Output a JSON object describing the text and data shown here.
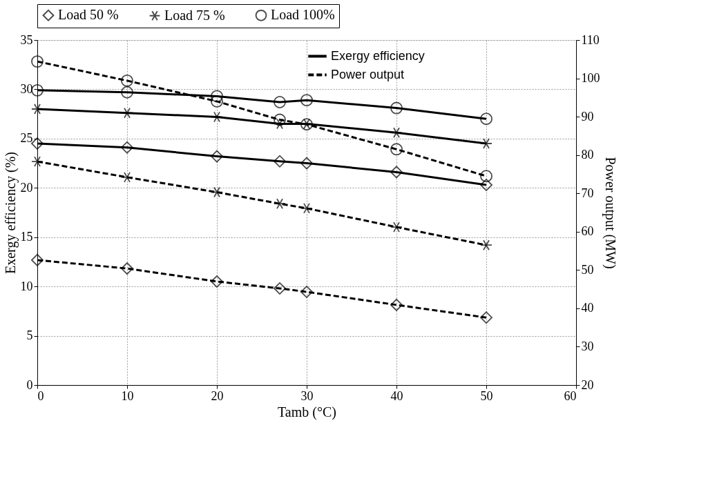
{
  "chart_data": {
    "type": "line",
    "xlabel": "Tamb (°C)",
    "ylabel": "Exergy efficiency (%)",
    "y2label": "Power output (MW)",
    "x": [
      0,
      10,
      20,
      27,
      30,
      40,
      50
    ],
    "series": [
      {
        "name": "Load 50 %",
        "color": "#000000",
        "marker": "diamond",
        "line_style": "solid",
        "axis": "y",
        "values": [
          24.5,
          24.1,
          23.2,
          22.7,
          22.5,
          21.6,
          20.3
        ]
      },
      {
        "name": "Load 75 %",
        "color": "#000000",
        "marker": "cross",
        "line_style": "solid",
        "axis": "y",
        "values": [
          28.0,
          27.6,
          27.2,
          26.5,
          26.5,
          25.6,
          24.5
        ]
      },
      {
        "name": "Load 100%",
        "color": "#000000",
        "marker": "circle",
        "line_style": "solid",
        "axis": "y",
        "values": [
          29.9,
          29.7,
          29.3,
          28.7,
          28.9,
          28.1,
          27.0
        ]
      },
      {
        "color": "#000000",
        "marker": "diamond",
        "line_style": "dashed",
        "axis": "y2",
        "values": [
          52.6,
          50.4,
          47.0,
          45.2,
          44.3,
          40.9,
          37.6
        ]
      },
      {
        "color": "#000000",
        "marker": "cross",
        "line_style": "dashed",
        "axis": "y2",
        "values": [
          78.3,
          74.2,
          70.3,
          67.3,
          66.1,
          61.2,
          56.5
        ]
      },
      {
        "color": "#000000",
        "marker": "circle",
        "line_style": "dashed",
        "axis": "y2",
        "values": [
          104.4,
          99.4,
          94.0,
          89.2,
          88.0,
          81.5,
          74.5
        ]
      }
    ],
    "annotations": [
      "Exergy efficiency",
      "Power output"
    ],
    "xlim": [
      0,
      60
    ],
    "xticks": [
      0,
      10,
      20,
      30,
      40,
      50,
      60
    ],
    "ylim": [
      0,
      35
    ],
    "yticks": [
      0,
      5,
      10,
      15,
      20,
      25,
      30,
      35
    ],
    "y2lim": [
      20,
      110
    ],
    "y2ticks": [
      20,
      30,
      40,
      50,
      60,
      70,
      80,
      90,
      100,
      110
    ],
    "grid": true,
    "legend": "top"
  }
}
